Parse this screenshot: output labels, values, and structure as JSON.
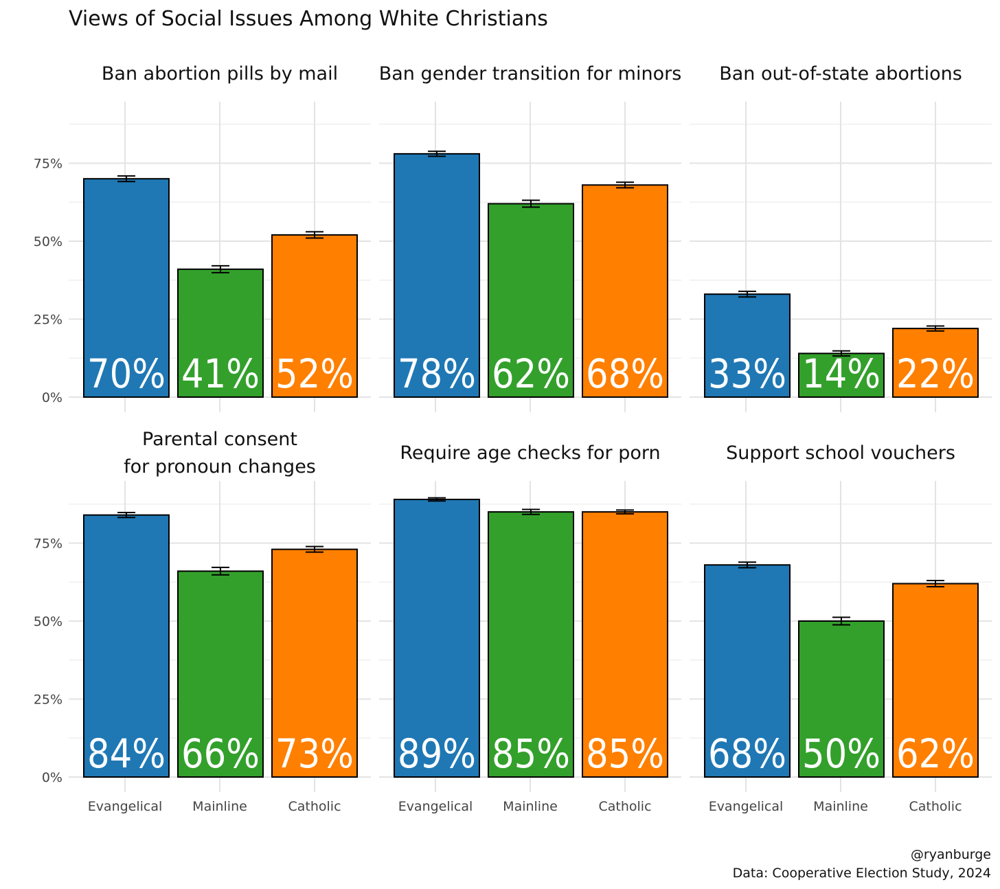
{
  "chart_data": {
    "type": "bar",
    "title": "Views of Social Issues Among White Christians",
    "categories": [
      "Evangelical",
      "Mainline",
      "Catholic"
    ],
    "colors": {
      "Evangelical": "#1f78b4",
      "Mainline": "#33a02c",
      "Catholic": "#ff7f00"
    },
    "ylim": [
      0,
      0.95
    ],
    "y_ticks": [
      0,
      0.25,
      0.5,
      0.75
    ],
    "y_tick_labels": [
      "0%",
      "25%",
      "50%",
      "75%"
    ],
    "grid": true,
    "error_bars": true,
    "panels": [
      {
        "title": [
          "Ban abortion pills by mail"
        ],
        "values": [
          0.7,
          0.41,
          0.52
        ],
        "errors": [
          0.009,
          0.011,
          0.01
        ],
        "labels": [
          "70%",
          "41%",
          "52%"
        ]
      },
      {
        "title": [
          "Ban gender transition for minors"
        ],
        "values": [
          0.78,
          0.62,
          0.68
        ],
        "errors": [
          0.008,
          0.011,
          0.009
        ],
        "labels": [
          "78%",
          "62%",
          "68%"
        ]
      },
      {
        "title": [
          "Ban out-of-state abortions"
        ],
        "values": [
          0.33,
          0.14,
          0.22
        ],
        "errors": [
          0.009,
          0.008,
          0.008
        ],
        "labels": [
          "33%",
          "14%",
          "22%"
        ]
      },
      {
        "title": [
          "Parental consent",
          "for pronoun changes"
        ],
        "values": [
          0.84,
          0.66,
          0.73
        ],
        "errors": [
          0.008,
          0.012,
          0.009
        ],
        "labels": [
          "84%",
          "66%",
          "73%"
        ]
      },
      {
        "title": [
          "Require age checks for porn"
        ],
        "values": [
          0.89,
          0.85,
          0.85
        ],
        "errors": [
          0.005,
          0.008,
          0.006
        ],
        "labels": [
          "89%",
          "85%",
          "85%"
        ]
      },
      {
        "title": [
          "Support school vouchers"
        ],
        "values": [
          0.68,
          0.5,
          0.62
        ],
        "errors": [
          0.009,
          0.012,
          0.01
        ],
        "labels": [
          "68%",
          "50%",
          "62%"
        ]
      }
    ]
  },
  "caption": {
    "line1": "@ryanburge",
    "line2": "Data: Cooperative Election Study, 2024"
  }
}
